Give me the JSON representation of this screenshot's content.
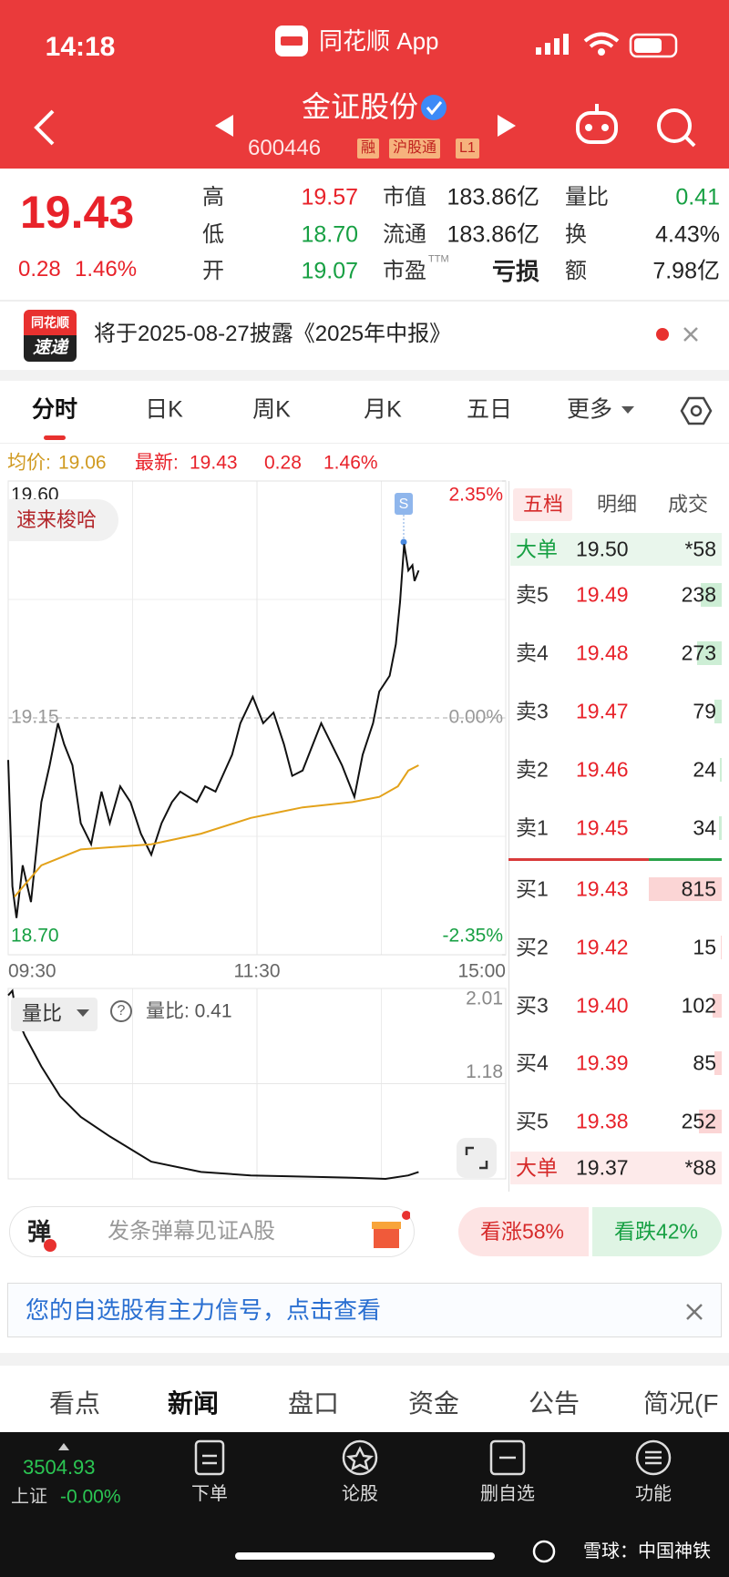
{
  "status_bar": {
    "time": "14:18",
    "app": "同花顺 App"
  },
  "header": {
    "name": "金证股份",
    "code": "600446",
    "tags": [
      "融",
      "沪股通",
      "L1"
    ]
  },
  "quote": {
    "price": "19.43",
    "change": "0.28",
    "change_pct": "1.46%",
    "stats": [
      [
        "高",
        "19.57"
      ],
      [
        "低",
        "18.70"
      ],
      [
        "开",
        "19.07"
      ],
      [
        "市值",
        "183.86亿"
      ],
      [
        "流通",
        "183.86亿"
      ],
      [
        "市盈",
        "亏损"
      ],
      [
        "量比",
        "0.41"
      ],
      [
        "换",
        "4.43%"
      ],
      [
        "额",
        "7.98亿"
      ]
    ],
    "ttm": "TTM"
  },
  "notice": {
    "logo_top": "同花顺",
    "logo_bottom": "速递",
    "text": "将于2025-08-27披露《2025年中报》"
  },
  "tabs": [
    "分时",
    "日K",
    "周K",
    "月K",
    "五日",
    "更多"
  ],
  "info_line": {
    "avg_label": "均价:",
    "avg": "19.06",
    "last_label": "最新:",
    "last": "19.43",
    "change": "0.28",
    "change_pct": "1.46%"
  },
  "chart_data": [
    {
      "type": "line",
      "xlim": [
        0,
        240
      ],
      "xticks": [
        {
          "value": 0,
          "label": "09:30"
        },
        {
          "value": 120,
          "label": "11:30"
        },
        {
          "value": 240,
          "label": "15:00"
        }
      ],
      "ylim": [
        18.7,
        19.6
      ],
      "yticks": [
        {
          "value": 19.6,
          "label": "19.60"
        },
        {
          "value": 19.15,
          "label": "19.15"
        },
        {
          "value": 18.7,
          "label": "18.70"
        }
      ],
      "y2lim": [
        -2.35,
        2.35
      ],
      "y2ticks": [
        {
          "value": 2.35,
          "label": "2.35%"
        },
        {
          "value": 0,
          "label": "0.00%"
        },
        {
          "value": -2.35,
          "label": "-2.35%"
        }
      ],
      "series": [
        {
          "color": "#111111",
          "x": [
            0,
            2,
            4,
            7,
            11,
            16,
            20,
            24,
            27,
            31,
            35,
            40,
            45,
            49,
            54,
            59,
            64,
            69,
            74,
            79,
            83,
            91,
            95,
            100,
            108,
            112,
            118,
            123,
            128,
            133,
            137,
            142,
            146,
            151,
            156,
            161,
            167,
            171,
            176,
            179,
            184,
            187,
            189,
            191,
            193,
            195,
            196,
            198
          ],
          "values": [
            19.07,
            18.83,
            18.77,
            18.87,
            18.8,
            18.99,
            19.06,
            19.14,
            19.1,
            19.06,
            18.95,
            18.91,
            19.01,
            18.95,
            19.02,
            18.99,
            18.93,
            18.89,
            18.95,
            18.99,
            19.01,
            18.99,
            19.02,
            19.01,
            19.08,
            19.14,
            19.19,
            19.14,
            19.16,
            19.1,
            19.04,
            19.05,
            19.09,
            19.14,
            19.1,
            19.06,
            19.0,
            19.08,
            19.14,
            19.2,
            19.23,
            19.29,
            19.37,
            19.48,
            19.43,
            19.44,
            19.41,
            19.43
          ]
        },
        {
          "color": "#e3a21a",
          "x": [
            3,
            16,
            35,
            69,
            93,
            117,
            142,
            166,
            179,
            188,
            193,
            198
          ],
          "values": [
            18.81,
            18.87,
            18.9,
            18.91,
            18.93,
            18.96,
            18.98,
            18.99,
            19.0,
            19.02,
            19.05,
            19.06
          ]
        }
      ]
    },
    {
      "type": "line",
      "xlim": [
        0,
        240
      ],
      "ylim": [
        0.35,
        2.01
      ],
      "yticks": [
        2.01,
        1.18
      ],
      "series": [
        {
          "color": "#111111",
          "x": [
            0,
            2,
            4,
            8,
            16,
            25,
            35,
            49,
            69,
            93,
            117,
            142,
            166,
            182,
            193,
            198
          ],
          "values": [
            1.95,
            1.99,
            1.77,
            1.6,
            1.33,
            1.07,
            0.89,
            0.72,
            0.5,
            0.41,
            0.38,
            0.37,
            0.36,
            0.35,
            0.38,
            0.41
          ]
        }
      ]
    }
  ],
  "chart_badges": {
    "bubble": "速来梭哈",
    "signal": "S"
  },
  "volume_panel": {
    "selector": "量比",
    "help": "?",
    "readout": "量比: 0.41"
  },
  "order_book": {
    "tabs": [
      "五档",
      "明细",
      "成交"
    ],
    "top_block": {
      "label": "大单",
      "price": "19.50",
      "volume": "*58"
    },
    "asks": [
      {
        "label": "卖5",
        "price": "19.49",
        "volume": 238
      },
      {
        "label": "卖4",
        "price": "19.48",
        "volume": 273
      },
      {
        "label": "卖3",
        "price": "19.47",
        "volume": 79
      },
      {
        "label": "卖2",
        "price": "19.46",
        "volume": 24
      },
      {
        "label": "卖1",
        "price": "19.45",
        "volume": 34
      }
    ],
    "bids": [
      {
        "label": "买1",
        "price": "19.43",
        "volume": 815
      },
      {
        "label": "买2",
        "price": "19.42",
        "volume": 15
      },
      {
        "label": "买3",
        "price": "19.40",
        "volume": 102
      },
      {
        "label": "买4",
        "price": "19.39",
        "volume": 85
      },
      {
        "label": "买5",
        "price": "19.38",
        "volume": 252
      }
    ],
    "bottom_block": {
      "label": "大单",
      "price": "19.37",
      "volume": "*88"
    }
  },
  "danmu": {
    "icon": "弹",
    "placeholder": "发条弹幕见证A股",
    "up": "看涨58%",
    "down": "看跌42%"
  },
  "signal_banner": {
    "text": "您的自选股有主力信号，点击查看"
  },
  "bottom_tabs": [
    "看点",
    "新闻",
    "盘口",
    "资金",
    "公告",
    "简况(F"
  ],
  "nav": {
    "index_value": "3504.93",
    "index_name": "上证",
    "index_change": "-0.00%",
    "items": [
      "下单",
      "论股",
      "删自选",
      "功能"
    ]
  },
  "watermark": "雪球：中国神铁"
}
